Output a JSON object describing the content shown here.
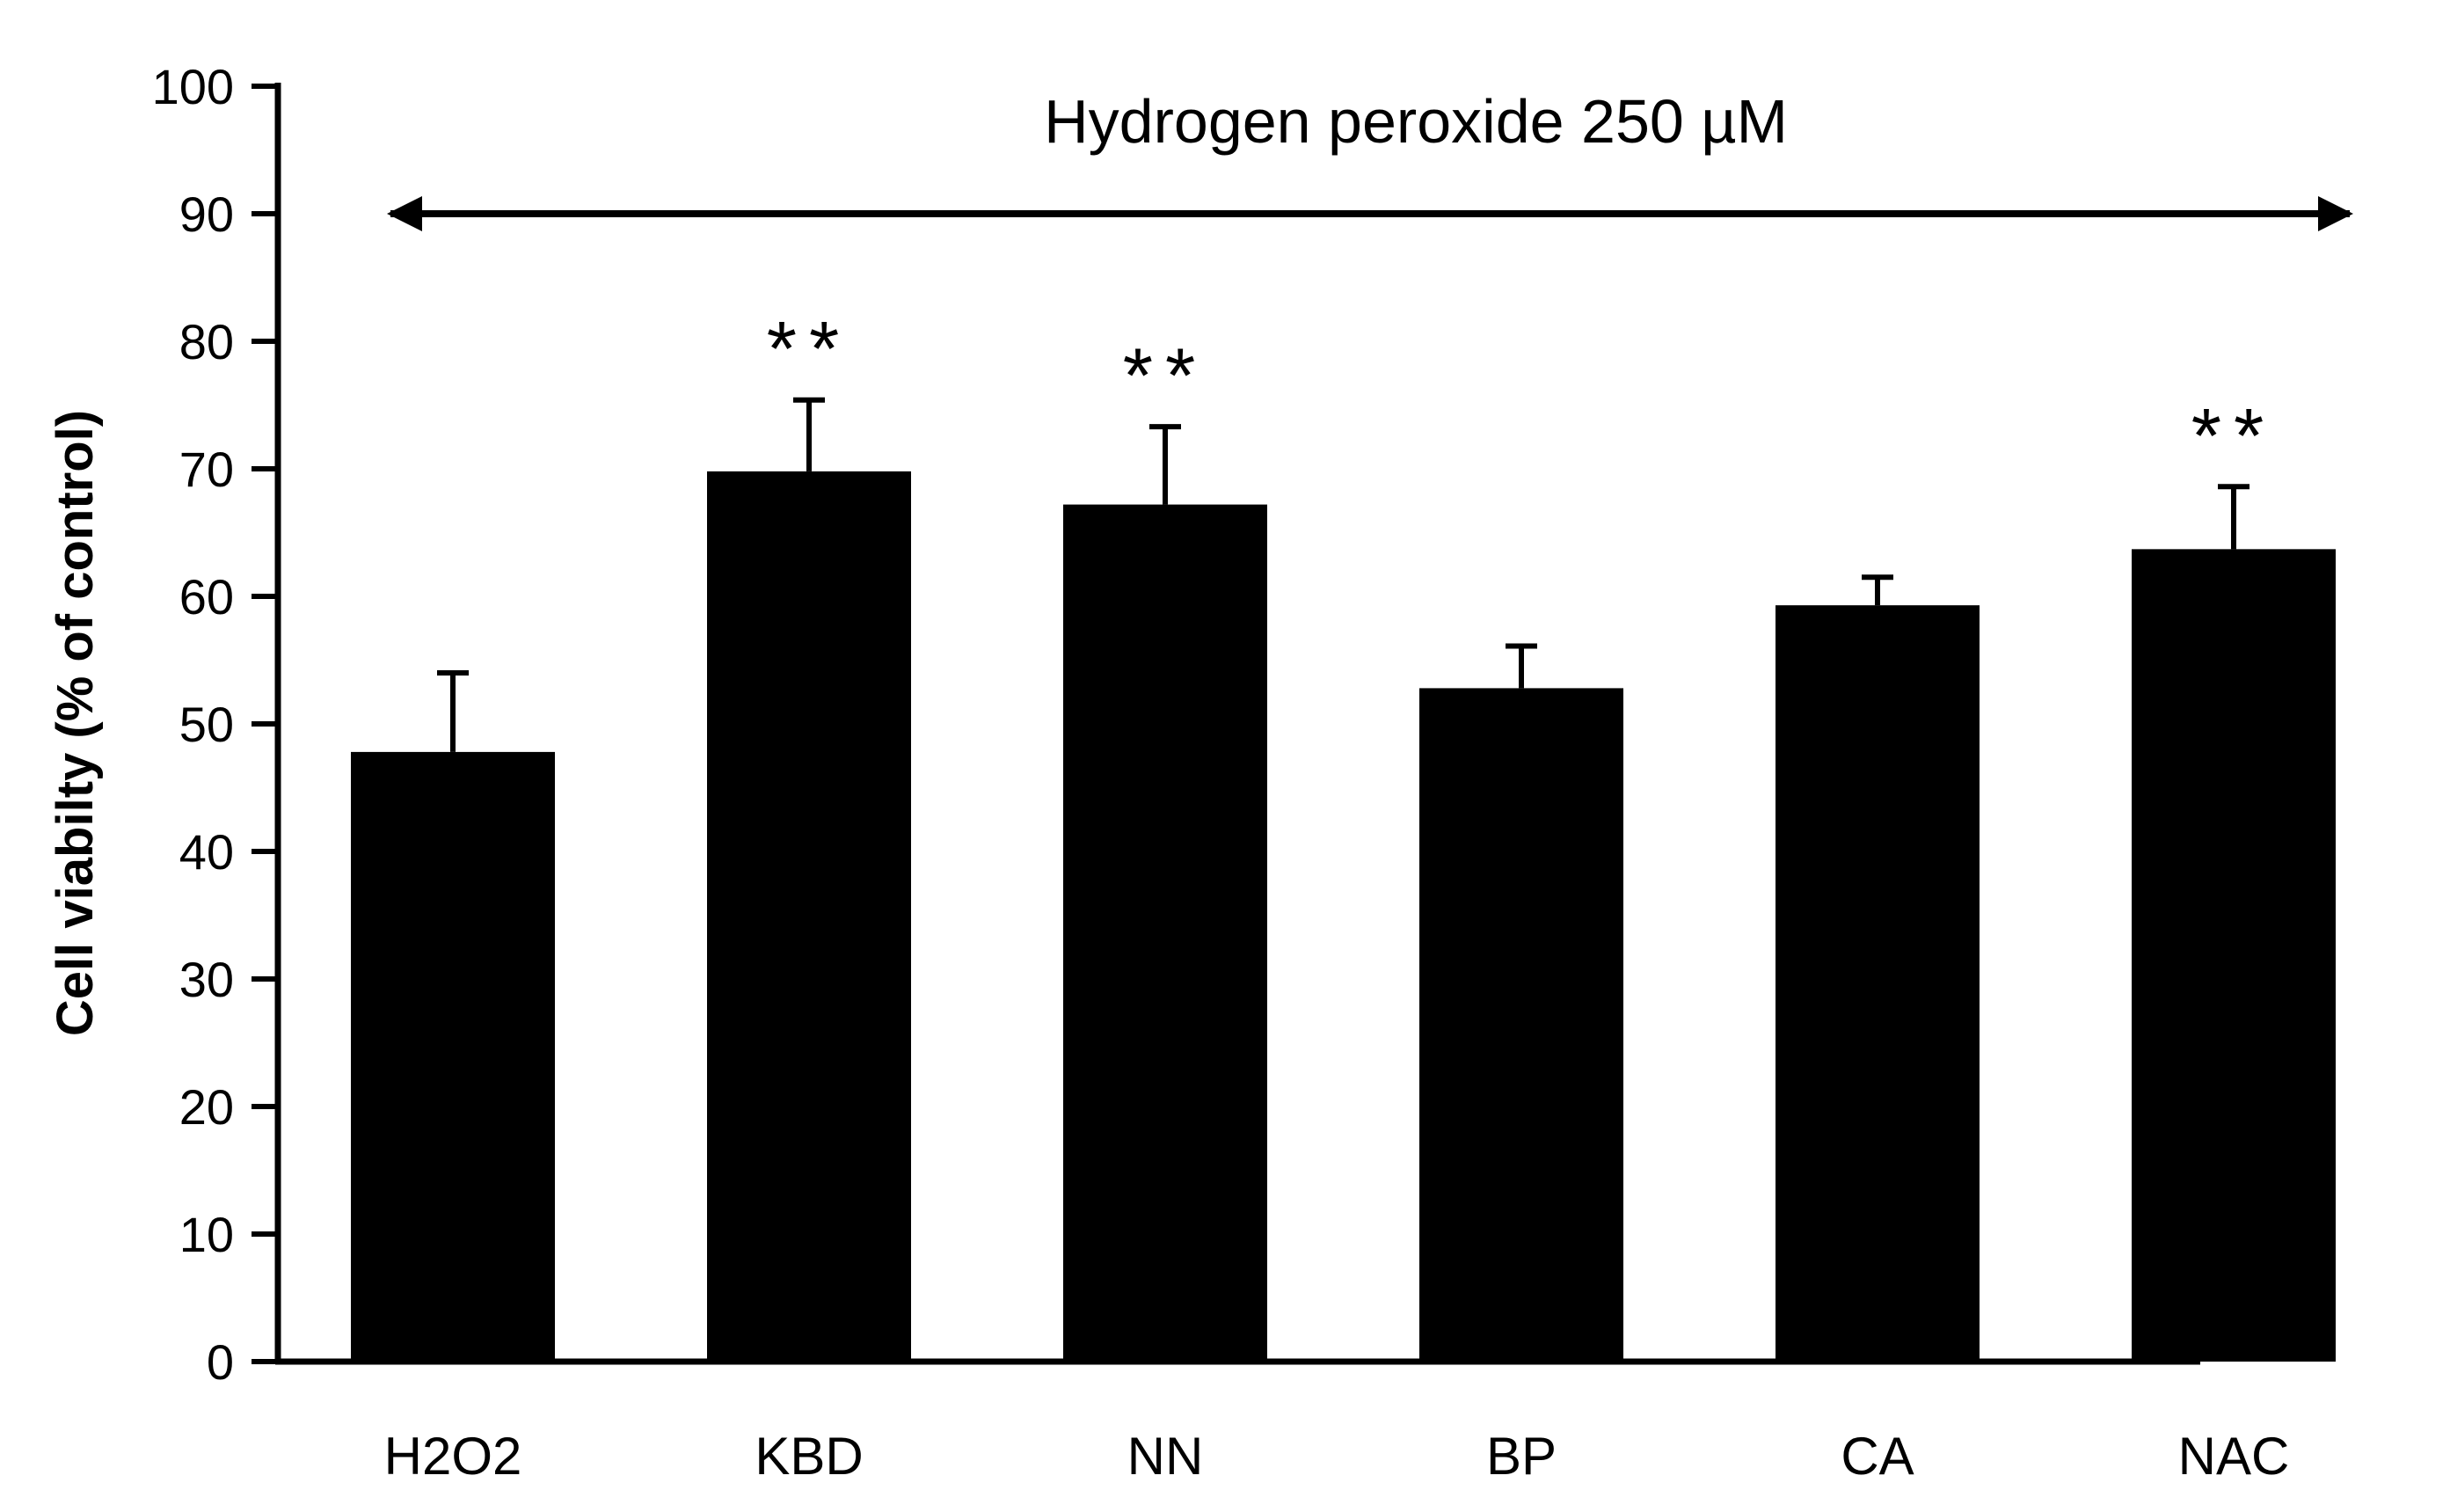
{
  "chart_data": {
    "type": "bar",
    "title": "",
    "xlabel": "",
    "ylabel": "Cell viabilty (% of control)",
    "ylim": [
      0,
      100
    ],
    "yticks": [
      0,
      10,
      20,
      30,
      40,
      50,
      60,
      70,
      80,
      90,
      100
    ],
    "categories": [
      "H2O2",
      "KBD",
      "NN",
      "BP",
      "CA",
      "NAC"
    ],
    "values": [
      47.8,
      69.8,
      67.2,
      52.8,
      59.3,
      63.7
    ],
    "errors": [
      6.2,
      5.6,
      6.1,
      3.3,
      2.2,
      4.9
    ],
    "significance": [
      "",
      "**",
      "**",
      "",
      "",
      "**"
    ],
    "bar_color": "#000000",
    "grid": false,
    "annotation": {
      "text": "Hydrogen peroxide 250 µM",
      "arrow": "double-headed, spanning all groups",
      "arrow_y": 90
    }
  }
}
